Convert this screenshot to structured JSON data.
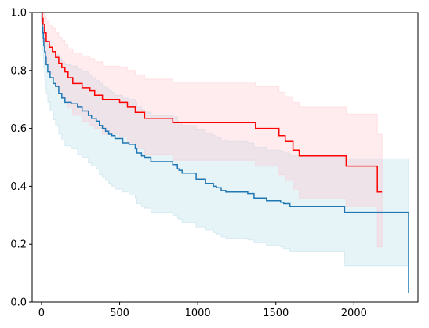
{
  "chart_data": {
    "type": "line",
    "subtype": "step (Kaplan-Meier survival curves with confidence bands)",
    "title": "",
    "xlabel": "",
    "ylabel": "",
    "xlim": [
      -60,
      2410
    ],
    "ylim": [
      0,
      1
    ],
    "x_ticks": [
      0,
      500,
      1000,
      1500,
      2000
    ],
    "x_tick_labels": [
      "0",
      "500",
      "1000",
      "1500",
      "2000"
    ],
    "y_ticks": [
      0.0,
      0.2,
      0.4,
      0.6,
      0.8,
      1.0
    ],
    "y_tick_labels": [
      "0.0",
      "0.2",
      "0.4",
      "0.6",
      "0.8",
      "1.0"
    ],
    "grid": false,
    "legend": "none",
    "series": [
      {
        "color": "#1f77b4",
        "band_color": "#add8e6",
        "x": [
          0,
          3,
          6,
          9,
          12,
          15,
          20,
          25,
          30,
          40,
          55,
          75,
          90,
          110,
          130,
          150,
          190,
          230,
          260,
          300,
          320,
          350,
          370,
          390,
          410,
          430,
          450,
          470,
          520,
          560,
          600,
          610,
          640,
          660,
          700,
          840,
          870,
          880,
          900,
          990,
          1050,
          1100,
          1120,
          1150,
          1180,
          1320,
          1360,
          1440,
          1530,
          1550,
          1590,
          1660,
          1940,
          2340,
          2350
        ],
        "y": [
          1.0,
          0.97,
          0.95,
          0.93,
          0.91,
          0.885,
          0.865,
          0.845,
          0.82,
          0.795,
          0.775,
          0.755,
          0.745,
          0.72,
          0.705,
          0.69,
          0.685,
          0.675,
          0.66,
          0.645,
          0.635,
          0.625,
          0.61,
          0.6,
          0.59,
          0.58,
          0.575,
          0.565,
          0.55,
          0.545,
          0.53,
          0.515,
          0.505,
          0.5,
          0.485,
          0.475,
          0.46,
          0.455,
          0.445,
          0.425,
          0.41,
          0.4,
          0.395,
          0.385,
          0.38,
          0.375,
          0.36,
          0.35,
          0.345,
          0.34,
          0.33,
          0.33,
          0.31,
          0.31,
          0.03
        ],
        "ci_upper": [
          1.0,
          0.99,
          0.98,
          0.97,
          0.96,
          0.945,
          0.935,
          0.92,
          0.905,
          0.89,
          0.875,
          0.865,
          0.855,
          0.84,
          0.83,
          0.82,
          0.815,
          0.805,
          0.795,
          0.785,
          0.775,
          0.765,
          0.755,
          0.745,
          0.74,
          0.73,
          0.725,
          0.715,
          0.705,
          0.7,
          0.69,
          0.675,
          0.665,
          0.66,
          0.645,
          0.64,
          0.625,
          0.62,
          0.61,
          0.595,
          0.585,
          0.575,
          0.57,
          0.56,
          0.555,
          0.55,
          0.535,
          0.525,
          0.52,
          0.515,
          0.505,
          0.505,
          0.495,
          0.495,
          0.495
        ],
        "ci_lower": [
          1.0,
          0.93,
          0.9,
          0.87,
          0.84,
          0.81,
          0.78,
          0.75,
          0.72,
          0.69,
          0.66,
          0.63,
          0.61,
          0.58,
          0.56,
          0.54,
          0.53,
          0.51,
          0.5,
          0.48,
          0.47,
          0.46,
          0.44,
          0.43,
          0.42,
          0.41,
          0.4,
          0.39,
          0.38,
          0.37,
          0.36,
          0.34,
          0.33,
          0.325,
          0.31,
          0.3,
          0.29,
          0.285,
          0.275,
          0.26,
          0.25,
          0.24,
          0.235,
          0.225,
          0.22,
          0.215,
          0.205,
          0.195,
          0.19,
          0.185,
          0.175,
          0.175,
          0.125,
          0.125,
          0.125
        ]
      },
      {
        "color": "#ff0000",
        "band_color": "#ffc0cb",
        "x": [
          0,
          5,
          10,
          20,
          30,
          50,
          70,
          90,
          110,
          130,
          150,
          170,
          200,
          260,
          310,
          340,
          390,
          500,
          550,
          600,
          660,
          700,
          840,
          1370,
          1520,
          1560,
          1610,
          1650,
          1950,
          2150,
          2180
        ],
        "y": [
          1.0,
          0.98,
          0.96,
          0.93,
          0.9,
          0.88,
          0.865,
          0.845,
          0.825,
          0.81,
          0.795,
          0.775,
          0.755,
          0.74,
          0.73,
          0.715,
          0.7,
          0.69,
          0.675,
          0.655,
          0.635,
          0.635,
          0.62,
          0.6,
          0.575,
          0.555,
          0.525,
          0.505,
          0.47,
          0.38,
          0.38
        ],
        "ci_upper": [
          1.0,
          1.0,
          0.995,
          0.985,
          0.97,
          0.955,
          0.945,
          0.93,
          0.915,
          0.905,
          0.89,
          0.875,
          0.86,
          0.85,
          0.84,
          0.83,
          0.815,
          0.81,
          0.8,
          0.785,
          0.77,
          0.77,
          0.76,
          0.745,
          0.725,
          0.71,
          0.69,
          0.675,
          0.65,
          0.58,
          0.58
        ],
        "ci_lower": [
          1.0,
          0.93,
          0.9,
          0.86,
          0.82,
          0.79,
          0.77,
          0.75,
          0.73,
          0.71,
          0.69,
          0.67,
          0.645,
          0.625,
          0.61,
          0.6,
          0.58,
          0.57,
          0.55,
          0.53,
          0.51,
          0.51,
          0.49,
          0.47,
          0.44,
          0.42,
          0.39,
          0.36,
          0.33,
          0.19,
          0.19
        ]
      }
    ]
  }
}
